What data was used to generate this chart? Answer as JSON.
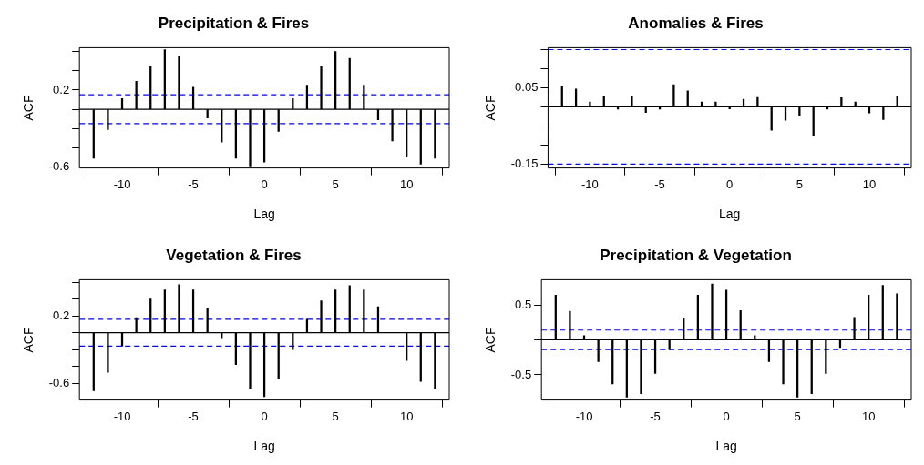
{
  "chart_data": [
    {
      "type": "bar",
      "title": "Precipitation & Fires",
      "xlabel": "Lag",
      "ylabel": "ACF",
      "x": [
        -12,
        -11,
        -10,
        -9,
        -8,
        -7,
        -6,
        -5,
        -4,
        -3,
        -2,
        -1,
        0,
        1,
        2,
        3,
        4,
        5,
        6,
        7,
        8,
        9,
        10,
        11,
        12
      ],
      "series": [
        {
          "color": "#000000",
          "values": [
            -0.51,
            -0.21,
            0.11,
            0.29,
            0.45,
            0.62,
            0.55,
            0.23,
            -0.09,
            -0.34,
            -0.51,
            -0.59,
            -0.55,
            -0.23,
            0.11,
            0.25,
            0.45,
            0.6,
            0.53,
            0.25,
            -0.11,
            -0.33,
            -0.49,
            -0.57,
            -0.51
          ]
        }
      ],
      "xlim": [
        -13,
        13
      ],
      "xticks": [
        -10,
        -5,
        0,
        5,
        10
      ],
      "ylim": [
        -0.61,
        0.64
      ],
      "yticks": [
        -0.6,
        {
          "value": -0.4,
          "label": null
        },
        {
          "value": -0.2,
          "label": null
        },
        {
          "value": 0,
          "label": null
        },
        0.2,
        {
          "value": 0.4,
          "label": null
        },
        {
          "value": 0.6,
          "label": null
        }
      ],
      "ref_lines": [
        {
          "axis": "y",
          "value": 0,
          "color": "#000000",
          "line_style": "solid"
        },
        {
          "axis": "y",
          "value": 0.15,
          "color": "#0000ff",
          "line_style": "dashed"
        },
        {
          "axis": "y",
          "value": -0.15,
          "color": "#0000ff",
          "line_style": "dashed"
        }
      ],
      "grid": false,
      "legend": false
    },
    {
      "type": "bar",
      "title": "Anomalies & Fires",
      "xlabel": "Lag",
      "ylabel": "ACF",
      "x": [
        -12,
        -11,
        -10,
        -9,
        -8,
        -7,
        -6,
        -5,
        -4,
        -3,
        -2,
        -1,
        0,
        1,
        2,
        3,
        4,
        5,
        6,
        7,
        8,
        9,
        10,
        11,
        12
      ],
      "series": [
        {
          "color": "#000000",
          "values": [
            0.053,
            0.047,
            0.013,
            0.028,
            -0.006,
            0.028,
            -0.015,
            -0.006,
            0.058,
            0.042,
            0.013,
            0.013,
            -0.005,
            0.02,
            0.025,
            -0.061,
            -0.035,
            -0.023,
            -0.076,
            -0.006,
            0.024,
            0.013,
            -0.016,
            -0.033,
            0.029
          ]
        }
      ],
      "xlim": [
        -13,
        13
      ],
      "xticks": [
        -10,
        -5,
        0,
        5,
        10
      ],
      "ylim": [
        -0.16,
        0.155
      ],
      "yticks": [
        -0.15,
        {
          "value": -0.1,
          "label": null
        },
        {
          "value": -0.05,
          "label": null
        },
        {
          "value": 0,
          "label": null
        },
        0.05,
        {
          "value": 0.1,
          "label": null
        },
        {
          "value": 0.15,
          "label": null
        }
      ],
      "ref_lines": [
        {
          "axis": "y",
          "value": 0,
          "color": "#000000",
          "line_style": "solid"
        },
        {
          "axis": "y",
          "value": 0.15,
          "color": "#0000ff",
          "line_style": "dashed"
        },
        {
          "axis": "y",
          "value": -0.15,
          "color": "#0000ff",
          "line_style": "dashed"
        }
      ],
      "grid": false,
      "legend": false
    },
    {
      "type": "bar",
      "title": "Vegetation & Fires",
      "xlabel": "Lag",
      "ylabel": "ACF",
      "x": [
        -12,
        -11,
        -10,
        -9,
        -8,
        -7,
        -6,
        -5,
        -4,
        -3,
        -2,
        -1,
        0,
        1,
        2,
        3,
        4,
        5,
        6,
        7,
        8,
        9,
        10,
        11,
        12
      ],
      "series": [
        {
          "color": "#000000",
          "values": [
            -0.69,
            -0.47,
            -0.16,
            0.18,
            0.4,
            0.51,
            0.57,
            0.51,
            0.29,
            -0.06,
            -0.38,
            -0.67,
            -0.76,
            -0.54,
            -0.2,
            0.16,
            0.38,
            0.51,
            0.56,
            0.51,
            0.31,
            0,
            -0.33,
            -0.58,
            -0.67
          ]
        }
      ],
      "xlim": [
        -13,
        13
      ],
      "xticks": [
        -10,
        -5,
        0,
        5,
        10
      ],
      "ylim": [
        -0.8,
        0.63
      ],
      "yticks": [
        -0.6,
        {
          "value": -0.4,
          "label": null
        },
        {
          "value": -0.2,
          "label": null
        },
        {
          "value": 0,
          "label": null
        },
        0.2,
        {
          "value": 0.4,
          "label": null
        },
        {
          "value": 0.6,
          "label": null
        }
      ],
      "ref_lines": [
        {
          "axis": "y",
          "value": 0,
          "color": "#000000",
          "line_style": "solid"
        },
        {
          "axis": "y",
          "value": 0.16,
          "color": "#0000ff",
          "line_style": "dashed"
        },
        {
          "axis": "y",
          "value": -0.16,
          "color": "#0000ff",
          "line_style": "dashed"
        }
      ],
      "grid": false,
      "legend": false
    },
    {
      "type": "bar",
      "title": "Precipitation & Vegetation",
      "xlabel": "Lag",
      "ylabel": "ACF",
      "x": [
        -12,
        -11,
        -10,
        -9,
        -8,
        -7,
        -6,
        -5,
        -4,
        -3,
        -2,
        -1,
        0,
        1,
        2,
        3,
        4,
        5,
        6,
        7,
        8,
        9,
        10,
        11,
        12
      ],
      "series": [
        {
          "color": "#000000",
          "values": [
            0.64,
            0.41,
            0.06,
            -0.31,
            -0.63,
            -0.82,
            -0.77,
            -0.48,
            -0.14,
            0.3,
            0.64,
            0.8,
            0.71,
            0.42,
            0.06,
            -0.31,
            -0.63,
            -0.82,
            -0.77,
            -0.48,
            -0.11,
            0.32,
            0.64,
            0.78,
            0.66
          ]
        }
      ],
      "xlim": [
        -13,
        13
      ],
      "xticks": [
        -10,
        -5,
        0,
        5,
        10
      ],
      "ylim": [
        -0.86,
        0.86
      ],
      "yticks": [
        -0.5,
        {
          "value": 0,
          "label": null
        },
        0.5
      ],
      "ref_lines": [
        {
          "axis": "y",
          "value": 0,
          "color": "#000000",
          "line_style": "solid"
        },
        {
          "axis": "y",
          "value": 0.14,
          "color": "#0000ff",
          "line_style": "dashed"
        },
        {
          "axis": "y",
          "value": -0.14,
          "color": "#0000ff",
          "line_style": "dashed"
        }
      ],
      "grid": false,
      "legend": false
    }
  ]
}
